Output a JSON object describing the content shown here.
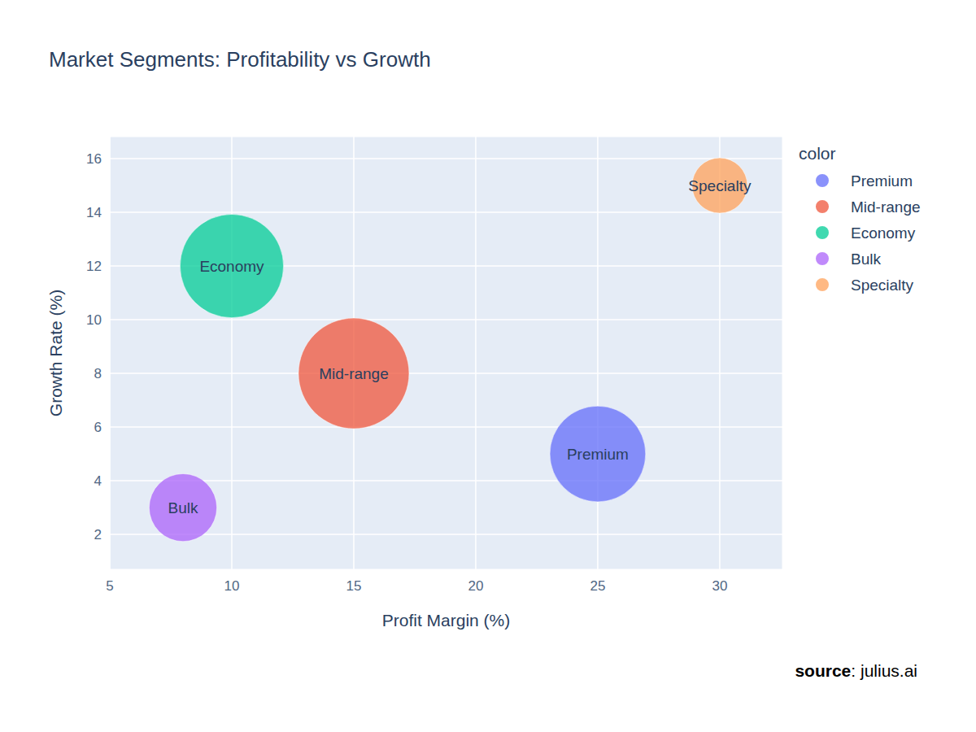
{
  "chart_data": {
    "type": "scatter",
    "marker": "bubble",
    "title": "Market Segments: Profitability vs Growth",
    "x_label": "Profit Margin (%)",
    "y_label": "Growth Rate (%)",
    "legend_title": "color",
    "legend": "right",
    "grid": true,
    "data_labels": true,
    "xlim": [
      5,
      32.57
    ],
    "xticks": [
      5,
      10,
      15,
      20,
      25,
      30
    ],
    "ylim": [
      0.7,
      16.82
    ],
    "yticks": [
      2,
      4,
      6,
      8,
      10,
      12,
      14,
      16
    ],
    "series": [
      {
        "name": "Premium",
        "color": "#636efa",
        "x": [
          25
        ],
        "values": [
          5
        ],
        "sizes": [
          30
        ]
      },
      {
        "name": "Mid-range",
        "color": "#ef553b",
        "x": [
          15
        ],
        "values": [
          8
        ],
        "sizes": [
          40
        ]
      },
      {
        "name": "Economy",
        "color": "#00cc96",
        "x": [
          10
        ],
        "values": [
          12
        ],
        "sizes": [
          35
        ]
      },
      {
        "name": "Bulk",
        "color": "#ab63fa",
        "x": [
          8
        ],
        "values": [
          3
        ],
        "sizes": [
          15
        ]
      },
      {
        "name": "Specialty",
        "color": "#ffa15a",
        "x": [
          30
        ],
        "values": [
          15
        ],
        "sizes": [
          10
        ]
      }
    ],
    "source": {
      "label": "source",
      "text": ": julius.ai"
    }
  }
}
